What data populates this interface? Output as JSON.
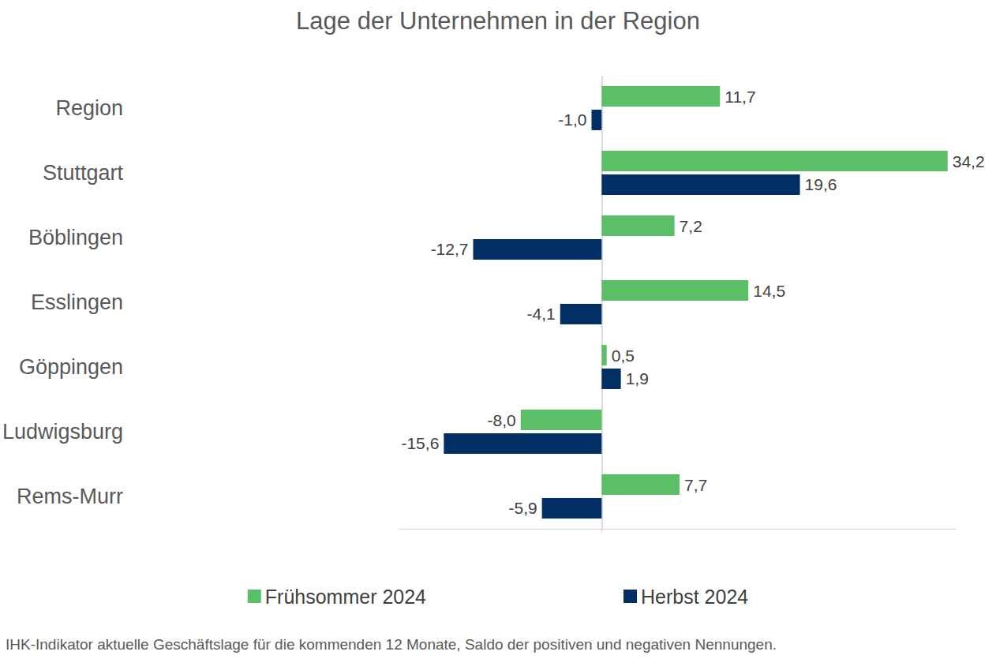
{
  "chart_data": {
    "type": "bar",
    "title": "Lage der Unternehmen in der Region",
    "footnote": "IHK-Indikator aktuelle Geschäftslage für die kommenden 12 Monate, Saldo der positiven und negativen Nennungen.",
    "orientation": "horizontal",
    "categories": [
      "Region",
      "Stuttgart",
      "Böblingen",
      "Esslingen",
      "Göppingen",
      "Ludwigsburg",
      "Rems-Murr"
    ],
    "series": [
      {
        "name": "Frühsommer 2024",
        "color": "#5bbf68",
        "values": [
          11.7,
          34.2,
          7.2,
          14.5,
          0.5,
          -8.0,
          7.7
        ],
        "value_labels": [
          "11,7",
          "34,2",
          "7,2",
          "14,5",
          "0,5",
          "-8,0",
          "7,7"
        ]
      },
      {
        "name": "Herbst 2024",
        "color": "#033064",
        "values": [
          -1.0,
          19.6,
          -12.7,
          -4.1,
          1.9,
          -15.6,
          -5.9
        ],
        "value_labels": [
          "-1,0",
          "19,6",
          "-12,7",
          "-4,1",
          "1,9",
          "-15,6",
          "-5,9"
        ]
      }
    ],
    "xlim": [
      -20,
      35
    ],
    "xticks": [
      0
    ],
    "grid": false,
    "legend": "bottom",
    "data_labels": true,
    "tick_labels": "y"
  }
}
